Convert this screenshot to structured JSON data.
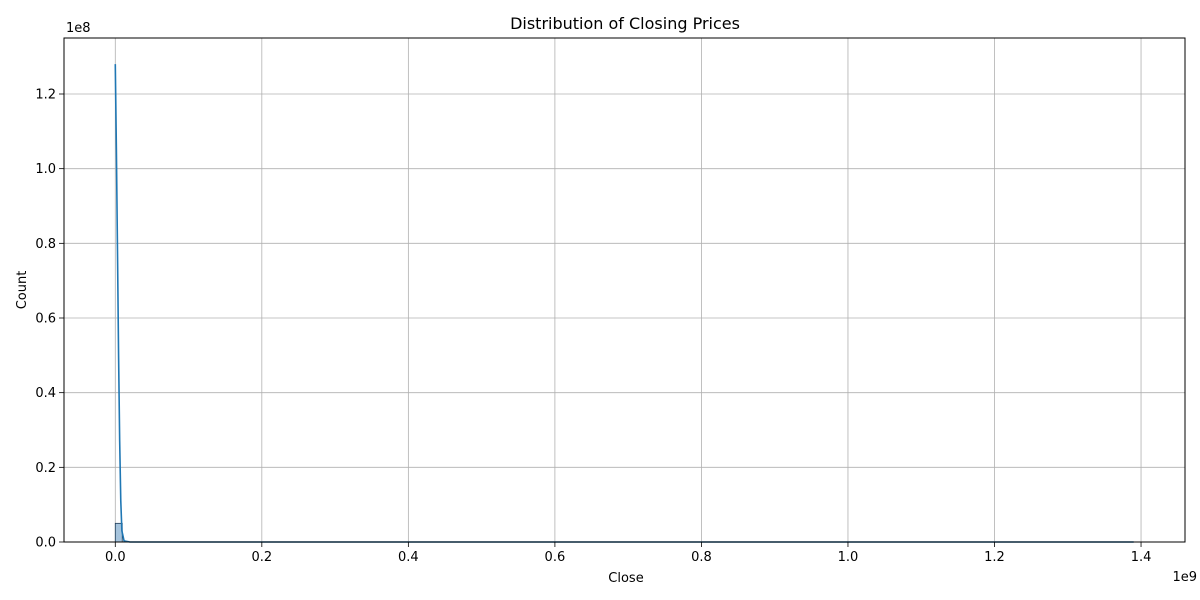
{
  "chart_data": {
    "type": "bar",
    "title": "Distribution of Closing Prices",
    "xlabel": "Close",
    "ylabel": "Count",
    "x_offset_label": "1e9",
    "y_offset_label": "1e8",
    "xlim": [
      -0.07,
      1.46
    ],
    "ylim": [
      0,
      1.35
    ],
    "x_ticks": [
      0.0,
      0.2,
      0.4,
      0.6,
      0.8,
      1.0,
      1.2,
      1.4
    ],
    "x_tick_labels": [
      "0.0",
      "0.2",
      "0.4",
      "0.6",
      "0.8",
      "1.0",
      "1.2",
      "1.4"
    ],
    "y_ticks": [
      0.0,
      0.2,
      0.4,
      0.6,
      0.8,
      1.0,
      1.2
    ],
    "y_tick_labels": [
      "0.0",
      "0.2",
      "0.4",
      "0.6",
      "0.8",
      "1.0",
      "1.2"
    ],
    "grid": true,
    "bins": [
      {
        "x0": 0.0,
        "x1": 0.0095,
        "count": 0.05
      }
    ],
    "kde": {
      "x": [
        0.0,
        0.0015,
        0.003,
        0.0045,
        0.006,
        0.0075,
        0.009,
        0.012,
        0.02,
        0.05,
        0.2,
        0.6,
        1.0,
        1.39
      ],
      "y": [
        1.28,
        1.05,
        0.78,
        0.5,
        0.27,
        0.11,
        0.03,
        0.003,
        0.0,
        0.0,
        0.0,
        0.0,
        0.0,
        0.0
      ]
    },
    "colors": {
      "bar_fill": "#a6c4dd",
      "bar_edge": "#1f3b57",
      "line": "#1f77b4",
      "grid": "#b0b0b0",
      "axis": "#000000"
    }
  }
}
